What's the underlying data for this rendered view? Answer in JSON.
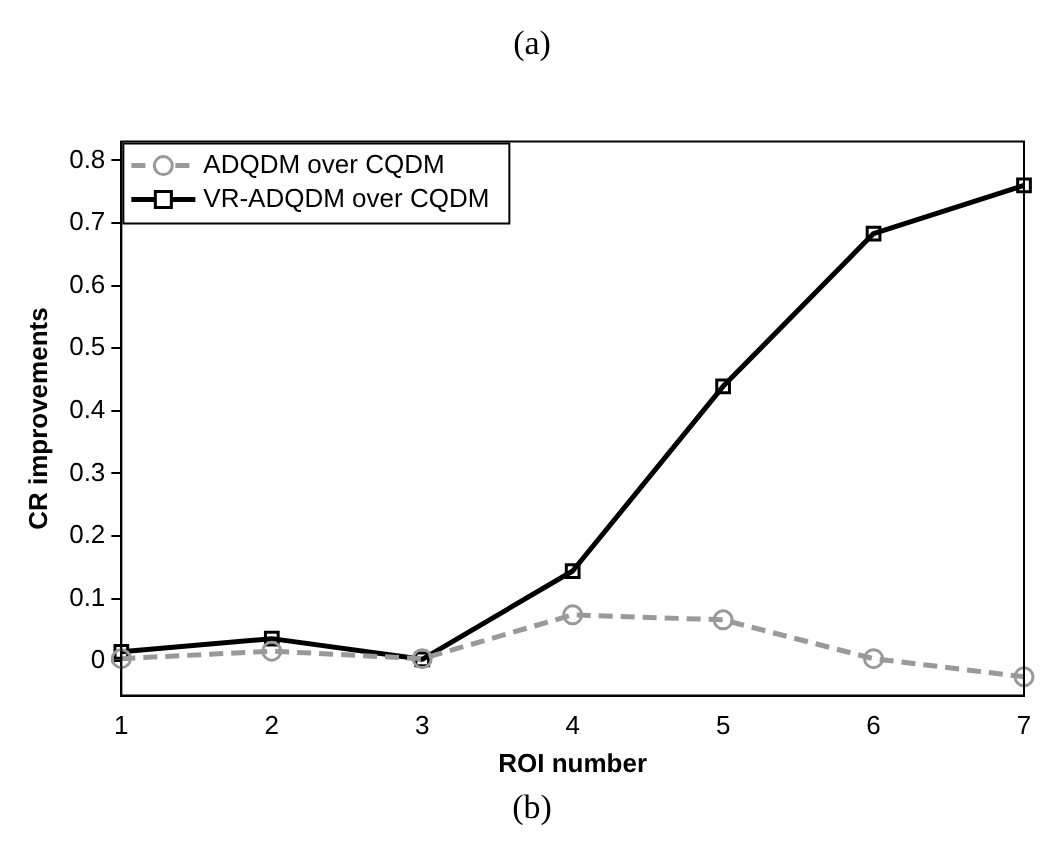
{
  "chart_data": {
    "type": "line",
    "annotations": [
      "(a)",
      "(b)"
    ],
    "xlabel": "ROI number",
    "ylabel": "CR improvements",
    "x": [
      1,
      2,
      3,
      4,
      5,
      6,
      7
    ],
    "xlim": [
      1,
      7
    ],
    "xticks": [
      1,
      2,
      3,
      4,
      5,
      6,
      7
    ],
    "ylim": [
      -0.055,
      0.83
    ],
    "yticks": [
      0,
      0.1,
      0.2,
      0.3,
      0.4,
      0.5,
      0.6,
      0.7,
      0.8
    ],
    "series": [
      {
        "name": "ADQDM over CQDM",
        "color": "#999999",
        "marker": "circle",
        "line_style": "dashed",
        "values": [
          0.004,
          0.016,
          0.004,
          0.074,
          0.066,
          0.004,
          -0.025
        ]
      },
      {
        "name": "VR-ADQDM over CQDM",
        "color": "#000000",
        "marker": "square",
        "line_style": "solid",
        "values": [
          0.015,
          0.036,
          0.003,
          0.144,
          0.439,
          0.683,
          0.76
        ]
      }
    ],
    "grid": false,
    "legend": "top left"
  }
}
